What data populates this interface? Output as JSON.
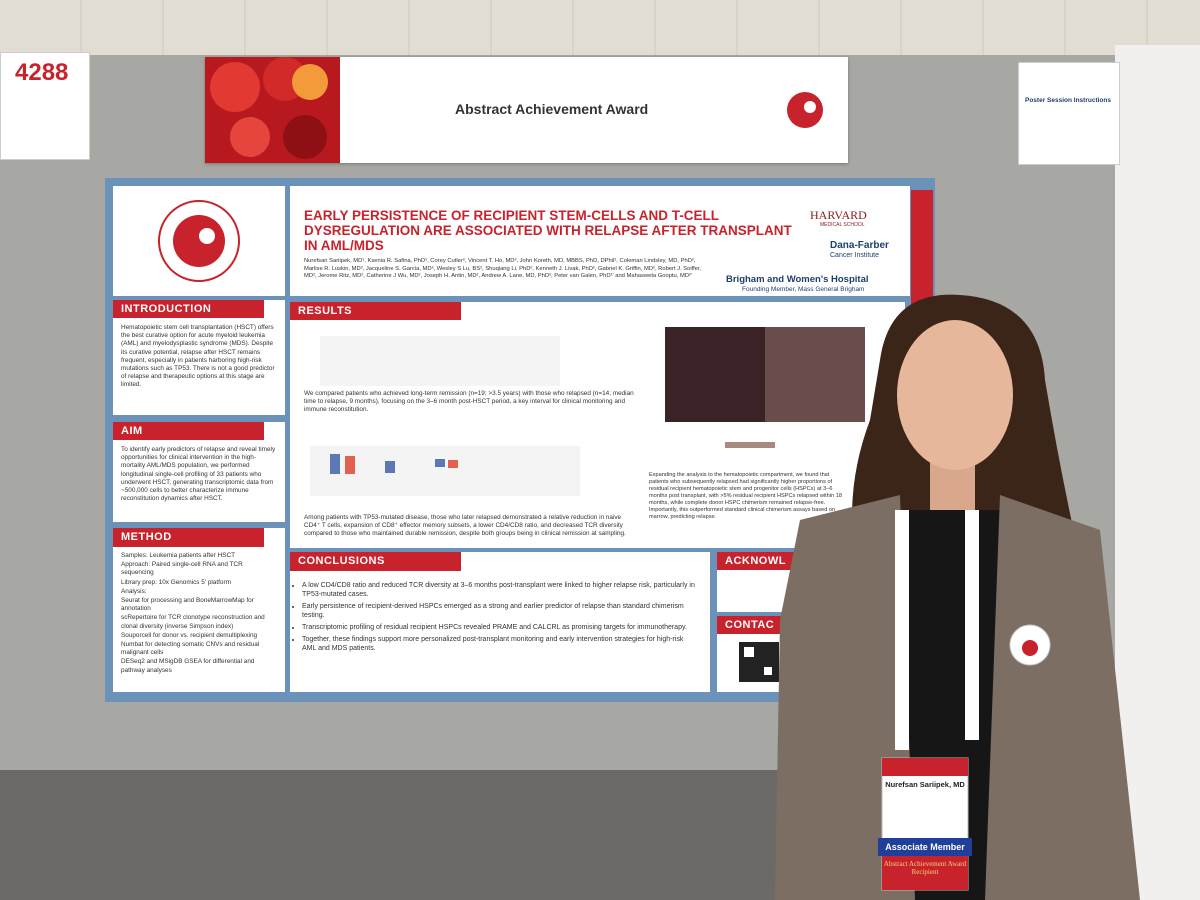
{
  "sign": {
    "number": "4288"
  },
  "banner": {
    "title": "Abstract Achievement Award"
  },
  "instructions": {
    "title": "Poster Session Instructions"
  },
  "poster": {
    "title": "EARLY PERSISTENCE OF RECIPIENT STEM-CELLS AND T-CELL DYSREGULATION ARE ASSOCIATED WITH RELAPSE AFTER TRANSPLANT IN AML/MDS",
    "authors": "Nurefsan Sariipek, MD¹, Ksenia R. Safina, PhD¹, Corey Cutler², Vincent T. Ho, MD², John Koreth, MD, MBBS, PhD, DPhil², Coleman Lindsley, MD, PhD², Marlise R. Luskin, MD², Jacqueline S. Garcia, MD², Wesley S Lu, BS², Shuqiang Li, PhD², Kenneth J. Livak, PhD², Gabriel K. Griffin, MD², Robert J. Soiffer, MD², Jerome Ritz, MD², Catherine J Wu, MD², Joseph H. Antin, MD², Andrew A. Lane, MD, PhD², Peter van Galen, PhD¹' and Mahasweta Gooptu, MD²'",
    "logos": [
      "HARVARD",
      "MEDICAL SCHOOL",
      "Dana-Farber",
      "Cancer Institute",
      "Brigham and Women's Hospital",
      "Founding Member, Mass General Brigham"
    ],
    "introduction": {
      "heading": "INTRODUCTION",
      "text": "Hematopoietic stem cell transplantation (HSCT) offers the best curative option for acute myeloid leukemia (AML) and myelodysplastic syndrome (MDS). Despite its curative potential, relapse after HSCT remains frequent, especially in patients harboring high-risk mutations such as TP53. There is not a good predictor of relapse and therapeutic options at this stage are limited."
    },
    "aim": {
      "heading": "AIM",
      "text": "To identify early predictors of relapse and reveal timely opportunities for clinical intervention in the high-mortality AML/MDS population, we performed longitudinal single-cell profiling of 33 patients who underwent HSCT, generating transcriptomic data from ~500,000 cells to better characterize immune reconstitution dynamics after HSCT."
    },
    "method": {
      "heading": "METHOD",
      "items": [
        "Samples: Leukemia patients after HSCT",
        "Approach: Paired single-cell RNA and TCR sequencing",
        "Library prep: 10x Genomics 5' platform",
        "Analysis:",
        "Seurat for processing and BoneMarrowMap for annotation",
        "scRepertoire for TCR clonotype reconstruction and clonal diversity (inverse Simpson index)",
        "Souporcell for donor vs. recipient demultiplexing",
        "Numbat for detecting somatic CNVs and residual malignant cells",
        "DESeq2 and MSigDB GSEA for differential and pathway analyses"
      ]
    },
    "results": {
      "heading": "RESULTS",
      "text1": "We compared patients who achieved long-term remission (n=19; >3.5 years) with those who relapsed (n=14; median time to relapse, 9 months), focusing on the 3–6 month post-HSCT period, a key interval for clinical monitoring and immune reconstitution.",
      "text2": "Among patients with TP53-mutated disease, those who later relapsed demonstrated a relative reduction in naive CD4⁺ T cells, expansion of CD8⁺ effector memory subsets, a lower CD4/CD8 ratio, and decreased TCR diversity compared to those who maintained durable remission, despite both groups being in clinical remission at sampling.",
      "text3": "Expanding the analysis to the hematopoietic compartment, we found that patients who subsequently relapsed had significantly higher proportions of residual recipient hematopoietic stem and progenitor cells (HSPCs) at 3–6 months post transplant, with >5% residual recipient HSPCs relapsed within 18 months, while complete donor HSPC chimerism remained relapse-free. Importantly, this outperformed standard clinical chimerism assays based on marrow, predicting relapse."
    },
    "conclusions": {
      "heading": "CONCLUSIONS",
      "items": [
        "A low CD4/CD8 ratio and reduced TCR diversity at 3–6 months post-transplant were linked to higher relapse risk, particularly in TP53-mutated cases.",
        "Early persistence of recipient-derived HSPCs emerged as a strong and earlier predictor of relapse than standard chimerism testing.",
        "Transcriptomic profiling of residual recipient HSPCs revealed PRAME and CALCRL as promising targets for immunotherapy.",
        "Together, these findings support more personalized post-transplant monitoring and early intervention strategies for high-risk AML and MDS patients."
      ]
    },
    "acknowledgements": {
      "heading": "ACKNOWL"
    },
    "contact": {
      "heading": "CONTAC"
    }
  },
  "badge": {
    "name": "Nurefsan Sariipek, MD",
    "member": "Associate Member",
    "ribbon": "Abstract Achievement Award Recipient"
  }
}
